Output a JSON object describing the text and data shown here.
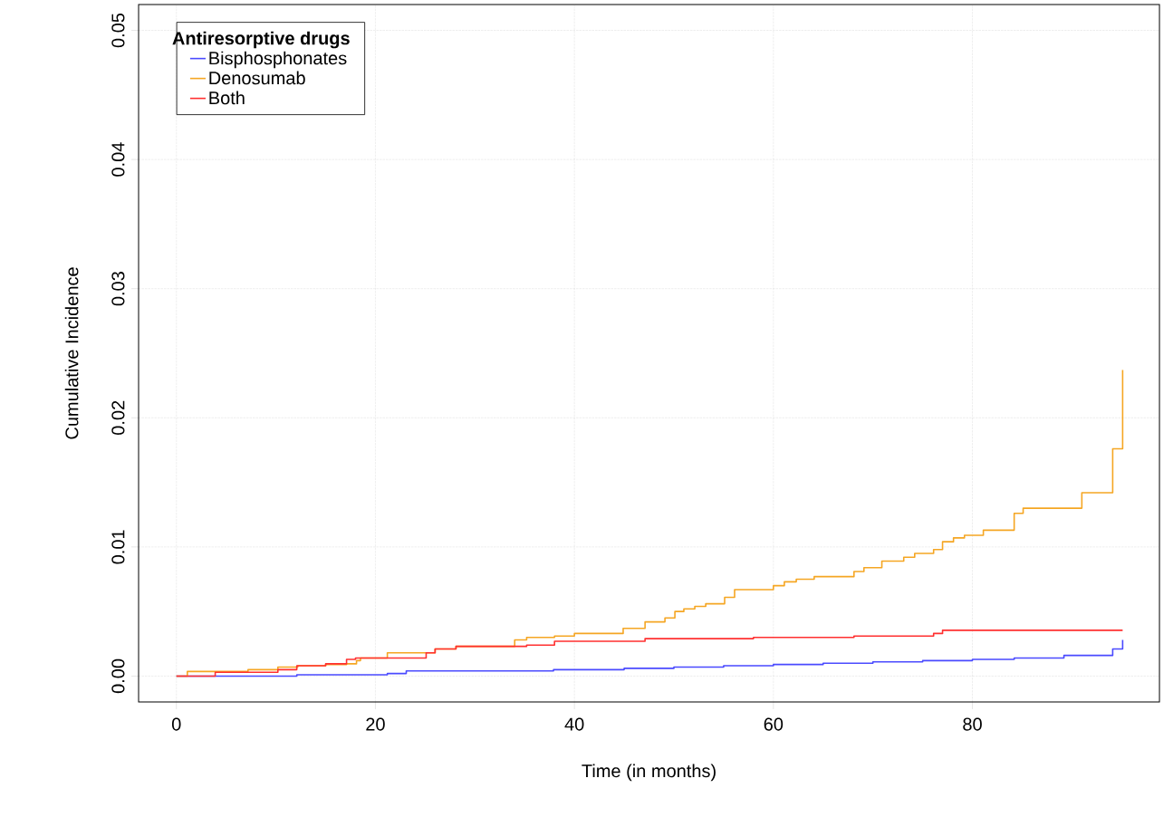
{
  "chart_data": {
    "type": "step",
    "xlabel": "Time (in months)",
    "ylabel": "Cumulative Incidence",
    "legend_title": "Antiresorptive drugs",
    "xlim": [
      -3.8,
      98.8
    ],
    "ylim": [
      -0.002,
      0.052
    ],
    "xticks": [
      0,
      20,
      40,
      60,
      80
    ],
    "yticks": [
      {
        "value": 0,
        "label": "0.00"
      },
      {
        "value": 0.01,
        "label": "0.01"
      },
      {
        "value": 0.02,
        "label": "0.02"
      },
      {
        "value": 0.03,
        "label": "0.03"
      },
      {
        "value": 0.04,
        "label": "0.04"
      },
      {
        "value": 0.05,
        "label": "0.05"
      }
    ],
    "grid": true,
    "legend": "top left",
    "line_style": "solid",
    "marker": "none",
    "series": [
      {
        "name": "Bisphosphonates",
        "color": "#4a4aff",
        "x": [
          0,
          12.1,
          21.2,
          23.1,
          37.9,
          45,
          50,
          55,
          60,
          65,
          70,
          75,
          80,
          84.2,
          89.2,
          94.1,
          95.1
        ],
        "values": [
          0,
          0.0001,
          0.0002,
          0.0004,
          0.0005,
          0.0006,
          0.0007,
          0.0008,
          0.0009,
          0.001,
          0.0011,
          0.0012,
          0.0013,
          0.0014,
          0.0016,
          0.0021,
          0.0028
        ]
      },
      {
        "name": "Denosumab",
        "color": "#f5a623",
        "x": [
          0,
          1.1,
          7.2,
          10.2,
          12.2,
          15.0,
          17.1,
          18.1,
          18.5,
          21.2,
          26.0,
          28.1,
          34.0,
          35.2,
          38.0,
          40.0,
          44.9,
          47.1,
          49.1,
          50.1,
          51.0,
          52.1,
          53.2,
          55.1,
          56.1,
          60.0,
          61.1,
          62.3,
          64.1,
          68.1,
          69.1,
          70.9,
          73.1,
          74.2,
          76.1,
          77.0,
          78.1,
          79.2,
          81.1,
          84.2,
          85.1,
          91.0,
          94.1,
          95.1
        ],
        "values": [
          0,
          0.00036,
          0.0005,
          0.0007,
          0.0008,
          0.0009,
          0.00095,
          0.0012,
          0.0014,
          0.0018,
          0.0021,
          0.0023,
          0.0028,
          0.003,
          0.0031,
          0.0033,
          0.0037,
          0.0042,
          0.0045,
          0.005,
          0.0052,
          0.0054,
          0.0056,
          0.0061,
          0.0067,
          0.007,
          0.0073,
          0.0075,
          0.0077,
          0.0081,
          0.0084,
          0.0089,
          0.0092,
          0.0095,
          0.0098,
          0.0104,
          0.0107,
          0.0109,
          0.0113,
          0.0126,
          0.013,
          0.0142,
          0.0176,
          0.0237
        ]
      },
      {
        "name": "Both",
        "color": "#ff3030",
        "x": [
          0,
          3.9,
          10.2,
          12.1,
          15.0,
          17.1,
          18.0,
          25.1,
          26.0,
          28.1,
          35.2,
          38.0,
          47.1,
          58.0,
          68.1,
          76.1,
          77.0,
          95.1
        ],
        "values": [
          0,
          0.0003,
          0.0005,
          0.0008,
          0.00095,
          0.0013,
          0.0014,
          0.0018,
          0.0021,
          0.0023,
          0.0024,
          0.0027,
          0.0029,
          0.003,
          0.0031,
          0.0033,
          0.00355,
          0.00355
        ]
      }
    ]
  }
}
